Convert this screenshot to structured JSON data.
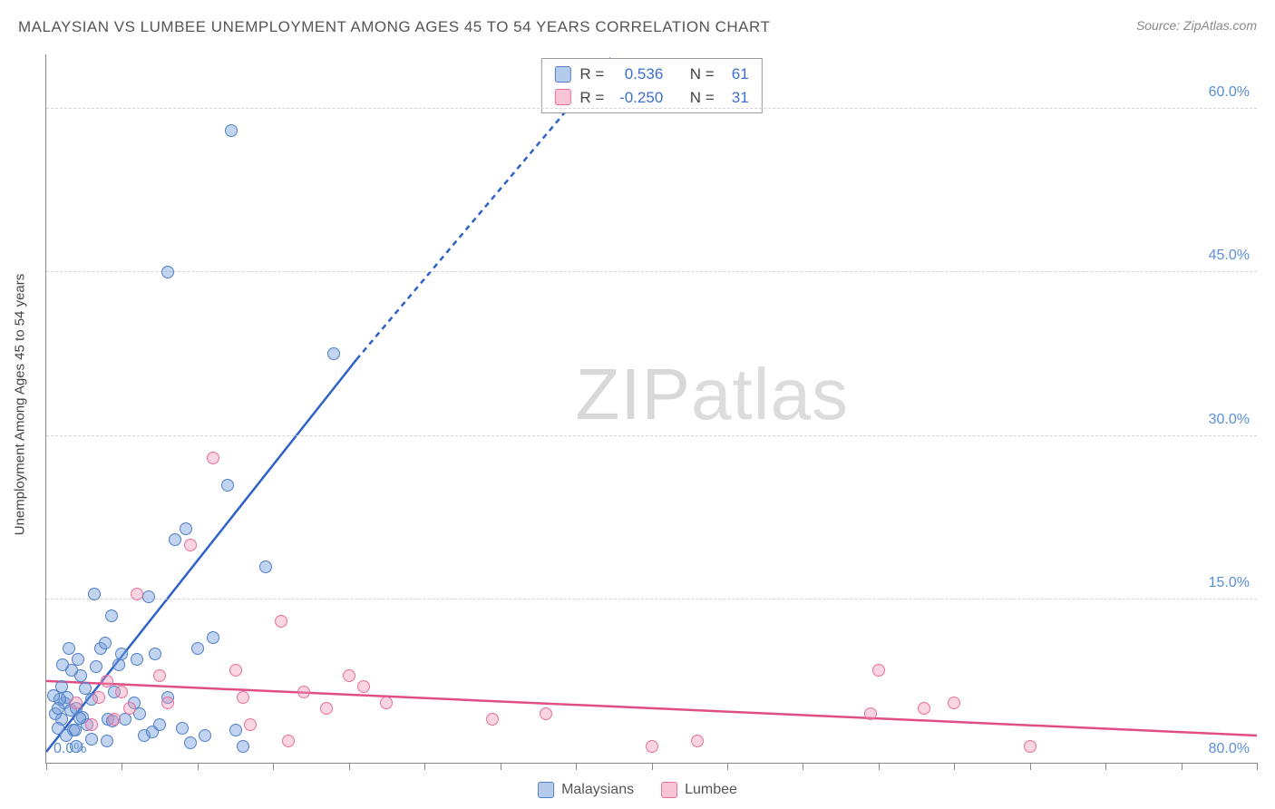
{
  "title": "MALAYSIAN VS LUMBEE UNEMPLOYMENT AMONG AGES 45 TO 54 YEARS CORRELATION CHART",
  "source": "Source: ZipAtlas.com",
  "yaxis_title": "Unemployment Among Ages 45 to 54 years",
  "watermark_a": "ZIP",
  "watermark_b": "atlas",
  "chart": {
    "type": "scatter",
    "xlim": [
      0,
      80
    ],
    "ylim": [
      0,
      65
    ],
    "x_ticks_minor": [
      0,
      5,
      10,
      15,
      20,
      25,
      30,
      35,
      40,
      45,
      50,
      55,
      60,
      65,
      70,
      75,
      80
    ],
    "y_grid": [
      15,
      30,
      45,
      60
    ],
    "y_grid_labels": [
      "15.0%",
      "30.0%",
      "45.0%",
      "60.0%"
    ],
    "x_min_label": "0.0%",
    "x_max_label": "80.0%",
    "background_color": "#ffffff",
    "grid_color": "#d5d5d5",
    "axis_color": "#888888",
    "label_color": "#5a8fd6",
    "label_fontsize": 16,
    "marker_radius": 7,
    "marker_stroke_width": 1.5,
    "series": {
      "blue": {
        "label": "Malaysians",
        "fill": "rgba(120,160,220,0.45)",
        "stroke": "#4e7fc7",
        "pts": [
          [
            1.0,
            4.0
          ],
          [
            1.2,
            5.5
          ],
          [
            1.4,
            6.0
          ],
          [
            0.8,
            3.2
          ],
          [
            1.6,
            4.8
          ],
          [
            2.0,
            5.0
          ],
          [
            2.3,
            8.0
          ],
          [
            2.1,
            9.5
          ],
          [
            1.8,
            3.0
          ],
          [
            2.4,
            4.2
          ],
          [
            3.0,
            5.8
          ],
          [
            3.3,
            8.8
          ],
          [
            3.6,
            10.5
          ],
          [
            2.7,
            3.5
          ],
          [
            4.1,
            4.0
          ],
          [
            4.5,
            6.5
          ],
          [
            3.9,
            11.0
          ],
          [
            4.8,
            9.0
          ],
          [
            5.2,
            4.0
          ],
          [
            5.8,
            5.5
          ],
          [
            6.5,
            2.5
          ],
          [
            6.0,
            9.5
          ],
          [
            7.0,
            2.8
          ],
          [
            7.5,
            3.5
          ],
          [
            8.0,
            6.0
          ],
          [
            6.8,
            15.2
          ],
          [
            7.2,
            10.0
          ],
          [
            9.0,
            3.2
          ],
          [
            9.5,
            1.8
          ],
          [
            10.5,
            2.5
          ],
          [
            11.0,
            11.5
          ],
          [
            8.5,
            20.5
          ],
          [
            9.2,
            21.5
          ],
          [
            12.0,
            25.5
          ],
          [
            12.5,
            3.0
          ],
          [
            13.0,
            1.5
          ],
          [
            14.5,
            18.0
          ],
          [
            8.0,
            45.0
          ],
          [
            12.2,
            58.0
          ],
          [
            19.0,
            37.5
          ],
          [
            3.2,
            15.5
          ],
          [
            4.0,
            2.0
          ],
          [
            4.4,
            3.8
          ],
          [
            1.3,
            2.5
          ],
          [
            2.6,
            6.8
          ],
          [
            1.0,
            7.0
          ],
          [
            0.6,
            4.5
          ],
          [
            2.0,
            1.5
          ],
          [
            1.7,
            8.5
          ],
          [
            0.9,
            5.8
          ],
          [
            2.2,
            4.1
          ],
          [
            3.0,
            2.2
          ],
          [
            5.0,
            10.0
          ],
          [
            1.1,
            9.0
          ],
          [
            0.5,
            6.2
          ],
          [
            1.5,
            10.5
          ],
          [
            10.0,
            10.5
          ],
          [
            4.3,
            13.5
          ],
          [
            6.2,
            4.5
          ],
          [
            1.9,
            3.0
          ],
          [
            0.8,
            5.0
          ]
        ],
        "trend": {
          "x1": 0,
          "y1": 1.0,
          "x2_solid": 20.5,
          "y2_solid": 37.0,
          "x2_dash": 37.5,
          "y2_dash": 65.0,
          "color": "#2d63c8",
          "width": 2.5,
          "dash": "6,5"
        }
      },
      "pink": {
        "label": "Lumbee",
        "fill": "rgba(240,150,180,0.4)",
        "stroke": "#e76fa0",
        "pts": [
          [
            2.0,
            5.5
          ],
          [
            3.5,
            6.0
          ],
          [
            4.0,
            7.5
          ],
          [
            5.0,
            6.5
          ],
          [
            6.0,
            15.5
          ],
          [
            7.5,
            8.0
          ],
          [
            9.5,
            20.0
          ],
          [
            11.0,
            28.0
          ],
          [
            12.5,
            8.5
          ],
          [
            13.0,
            6.0
          ],
          [
            15.5,
            13.0
          ],
          [
            16.0,
            2.0
          ],
          [
            17.0,
            6.5
          ],
          [
            18.5,
            5.0
          ],
          [
            20.0,
            8.0
          ],
          [
            21.0,
            7.0
          ],
          [
            22.5,
            5.5
          ],
          [
            29.5,
            4.0
          ],
          [
            33.0,
            4.5
          ],
          [
            40.0,
            1.5
          ],
          [
            43.0,
            2.0
          ],
          [
            54.5,
            4.5
          ],
          [
            55.0,
            8.5
          ],
          [
            58.0,
            5.0
          ],
          [
            60.0,
            5.5
          ],
          [
            65.0,
            1.5
          ],
          [
            4.5,
            4.0
          ],
          [
            3.0,
            3.5
          ],
          [
            5.5,
            5.0
          ],
          [
            8.0,
            5.5
          ],
          [
            13.5,
            3.5
          ]
        ],
        "trend": {
          "x1": 0,
          "y1": 7.5,
          "x2_solid": 80,
          "y2_solid": 2.5,
          "color": "#e04e86",
          "width": 2.5
        }
      }
    }
  },
  "stats": [
    {
      "swatch": "blue",
      "r_label": "R =",
      "r_value": " 0.536",
      "n_label": "N =",
      "n_value": "61"
    },
    {
      "swatch": "pink",
      "r_label": "R =",
      "r_value": "-0.250",
      "n_label": "N =",
      "n_value": "31"
    }
  ],
  "legend": [
    {
      "swatch": "blue",
      "label": "Malaysians"
    },
    {
      "swatch": "pink",
      "label": "Lumbee"
    }
  ]
}
